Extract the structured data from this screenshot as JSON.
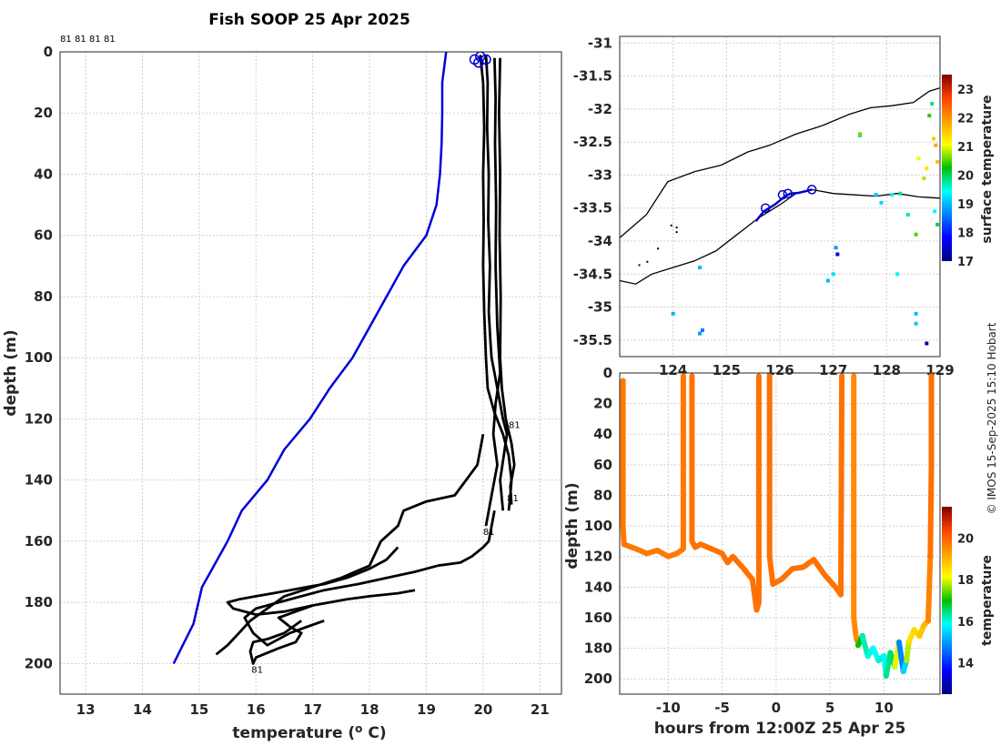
{
  "page": {
    "title": "Fish SOOP 25 Apr 2025",
    "credit": "© IMOS 15-Sep-2025 15:10 Hobart"
  },
  "chart_data": [
    {
      "id": "profile",
      "type": "line",
      "title": "Fish SOOP 25 Apr 2025",
      "xlabel": "temperature (",
      "xlabel_unit_sup": "o",
      "xlabel_unit": " C)",
      "ylabel": "depth (m)",
      "xlim": [
        12.55,
        21.38
      ],
      "ylim": [
        210,
        0
      ],
      "xticks": [
        13,
        14,
        15,
        16,
        17,
        18,
        19,
        20,
        21
      ],
      "yticks": [
        0,
        20,
        40,
        60,
        80,
        100,
        120,
        140,
        160,
        180,
        200
      ],
      "grid": true,
      "top_labels": [
        "81",
        "81",
        "81",
        "81"
      ],
      "point_labels": [
        {
          "text": "81",
          "x": 20.45,
          "y": 123
        },
        {
          "text": "81",
          "x": 20.42,
          "y": 147
        },
        {
          "text": "81",
          "x": 20.0,
          "y": 158
        },
        {
          "text": "81",
          "x": 15.92,
          "y": 203
        }
      ],
      "series": [
        {
          "name": "climatology",
          "color": "#0000dd",
          "x": [
            19.35,
            19.28,
            19.28,
            19.27,
            19.24,
            19.18,
            19.0,
            18.6,
            18.3,
            18.0,
            17.7,
            17.3,
            16.95,
            16.5,
            16.2,
            15.75,
            15.5,
            15.2,
            15.05,
            14.9,
            14.55
          ],
          "y": [
            0,
            10,
            20,
            30,
            40,
            50,
            60,
            70,
            80,
            90,
            100,
            110,
            120,
            130,
            140,
            150,
            160,
            170,
            175,
            187,
            200
          ]
        },
        {
          "name": "profile-upper-1",
          "color": "#000000",
          "x": [
            20.05,
            20.08,
            20.07,
            20.1,
            20.09,
            20.12,
            20.1,
            20.13,
            20.15,
            20.2,
            20.25,
            20.3,
            20.35,
            20.42,
            20.38,
            20.3,
            20.35
          ],
          "y": [
            1,
            10,
            25,
            40,
            55,
            70,
            85,
            95,
            100,
            105,
            110,
            115,
            120,
            125,
            130,
            140,
            150
          ]
        },
        {
          "name": "profile-upper-2",
          "color": "#000000",
          "x": [
            19.95,
            20.0,
            20.02,
            20.0,
            20.01,
            20.0,
            20.02,
            20.05,
            20.08,
            20.2,
            20.35,
            20.45,
            20.5,
            20.48,
            20.45
          ],
          "y": [
            1,
            10,
            25,
            40,
            55,
            70,
            85,
            100,
            110,
            118,
            125,
            132,
            140,
            145,
            150
          ]
        },
        {
          "name": "profile-upper-3",
          "color": "#000000",
          "x": [
            20.2,
            20.22,
            20.21,
            20.23,
            20.22,
            20.25,
            20.3,
            20.22,
            20.18,
            20.25,
            20.15,
            20.05
          ],
          "y": [
            2,
            15,
            30,
            50,
            70,
            90,
            105,
            115,
            125,
            135,
            145,
            155
          ]
        },
        {
          "name": "profile-upper-4",
          "color": "#000000",
          "x": [
            20.3,
            20.28,
            20.3,
            20.29,
            20.31,
            20.3,
            20.33,
            20.4,
            20.5,
            20.55,
            20.48,
            20.5
          ],
          "y": [
            2,
            20,
            40,
            60,
            80,
            100,
            110,
            120,
            128,
            135,
            142,
            148
          ]
        },
        {
          "name": "profile-deep-1",
          "color": "#000000",
          "x": [
            20.0,
            19.95,
            19.9,
            19.7,
            19.5,
            19.0,
            18.6,
            18.5,
            18.2,
            18.0,
            17.5,
            17.0,
            16.5,
            16.2,
            15.9,
            15.7,
            15.5,
            15.3
          ],
          "y": [
            125,
            130,
            135,
            140,
            145,
            147,
            150,
            155,
            160,
            168,
            172,
            175,
            178,
            182,
            186,
            190,
            194,
            197
          ]
        },
        {
          "name": "profile-deep-2",
          "color": "#000000",
          "x": [
            20.2,
            20.1,
            20.0,
            19.8,
            19.6,
            19.2,
            18.8,
            18.3,
            17.8,
            17.2,
            16.8,
            16.4,
            16.0,
            15.8,
            15.95,
            16.2,
            16.6,
            16.9,
            17.2
          ],
          "y": [
            150,
            160,
            162,
            165,
            167,
            168,
            170,
            172,
            174,
            176,
            178,
            180,
            182,
            185,
            190,
            194,
            190,
            188,
            186
          ]
        },
        {
          "name": "profile-deep-3",
          "color": "#000000",
          "x": [
            18.5,
            18.3,
            18.0,
            17.6,
            17.2,
            16.9,
            16.6,
            16.3,
            16.0,
            15.7,
            15.5,
            15.6,
            16.0,
            16.5,
            17.0,
            17.6,
            18.0,
            18.5,
            18.8
          ],
          "y": [
            162,
            166,
            169,
            172,
            174,
            175,
            176,
            177,
            178,
            179,
            180,
            182,
            184,
            183,
            181,
            179,
            178,
            177,
            176
          ]
        },
        {
          "name": "profile-deep-4",
          "color": "#000000",
          "x": [
            16.8,
            16.5,
            16.2,
            15.95,
            15.9,
            15.95,
            16.0,
            16.4,
            16.7,
            16.8,
            16.6,
            16.4,
            16.7,
            17.0
          ],
          "y": [
            186,
            190,
            192,
            193,
            196,
            200,
            198,
            195,
            193,
            190,
            188,
            185,
            183,
            181
          ]
        }
      ],
      "surface_points": [
        {
          "x": 19.85,
          "y": 2.5
        },
        {
          "x": 19.95,
          "y": 1.5
        },
        {
          "x": 20.05,
          "y": 2.5
        },
        {
          "x": 19.92,
          "y": 3.5
        }
      ]
    },
    {
      "id": "map",
      "type": "scatter",
      "xlim": [
        123.0,
        129.0
      ],
      "ylim": [
        -35.75,
        -30.9
      ],
      "xticks": [
        124,
        125,
        126,
        127,
        128,
        129
      ],
      "xtick_labels": [
        "124",
        "125",
        "126",
        "127",
        "128",
        "129"
      ],
      "yticks": [
        -31,
        -31.5,
        -32,
        -32.5,
        -33,
        -33.5,
        -34,
        -34.5,
        -35,
        -35.5
      ],
      "colorbar": {
        "label": "surface temperature",
        "range": [
          17,
          23.5
        ],
        "ticks": [
          17,
          18,
          19,
          20,
          21,
          22,
          23
        ]
      },
      "coast_lines": [
        {
          "x": [
            123.0,
            123.5,
            123.9,
            124.4,
            124.9,
            125.4,
            125.8,
            126.3,
            126.8,
            127.3,
            127.7,
            128.1,
            128.5,
            128.8,
            129.0
          ],
          "y": [
            -33.95,
            -33.6,
            -33.1,
            -32.95,
            -32.85,
            -32.65,
            -32.55,
            -32.38,
            -32.25,
            -32.08,
            -31.98,
            -31.95,
            -31.9,
            -31.73,
            -31.68
          ]
        },
        {
          "x": [
            123.0,
            123.3,
            123.6,
            124.0,
            124.4,
            124.8,
            125.2,
            125.6,
            126.0,
            126.3,
            126.6,
            127.0,
            127.4,
            127.8,
            128.2,
            128.6,
            129.0
          ],
          "y": [
            -34.6,
            -34.65,
            -34.5,
            -34.4,
            -34.3,
            -34.15,
            -33.9,
            -33.65,
            -33.45,
            -33.28,
            -33.22,
            -33.28,
            -33.3,
            -33.32,
            -33.28,
            -33.33,
            -33.35
          ]
        }
      ],
      "track": {
        "x": [
          125.55,
          125.7,
          125.9,
          126.1,
          126.2,
          126.35,
          126.45,
          126.6
        ],
        "y": [
          -33.7,
          -33.55,
          -33.45,
          -33.32,
          -33.28,
          -33.27,
          -33.25,
          -33.22
        ]
      },
      "track_markers": [
        {
          "x": 125.73,
          "y": -33.5
        },
        {
          "x": 126.05,
          "y": -33.3
        },
        {
          "x": 126.15,
          "y": -33.28
        },
        {
          "x": 126.6,
          "y": -33.22
        }
      ],
      "sst_points": [
        {
          "x": 128.85,
          "y": -31.92,
          "v": 19.8
        },
        {
          "x": 128.8,
          "y": -32.1,
          "v": 20.4
        },
        {
          "x": 128.88,
          "y": -32.45,
          "v": 21.5
        },
        {
          "x": 128.92,
          "y": -32.55,
          "v": 21.8
        },
        {
          "x": 128.6,
          "y": -32.75,
          "v": 21.0
        },
        {
          "x": 128.75,
          "y": -32.9,
          "v": 21.3
        },
        {
          "x": 128.95,
          "y": -32.8,
          "v": 21.6
        },
        {
          "x": 128.25,
          "y": -33.28,
          "v": 19.8
        },
        {
          "x": 128.1,
          "y": -33.3,
          "v": 19.5
        },
        {
          "x": 128.4,
          "y": -33.6,
          "v": 19.7
        },
        {
          "x": 128.55,
          "y": -33.9,
          "v": 20.5
        },
        {
          "x": 128.95,
          "y": -33.75,
          "v": 20.0
        },
        {
          "x": 128.9,
          "y": -33.55,
          "v": 19.4
        },
        {
          "x": 127.5,
          "y": -32.4,
          "v": 19.8
        },
        {
          "x": 127.5,
          "y": -32.38,
          "v": 20.6
        },
        {
          "x": 127.05,
          "y": -34.1,
          "v": 18.8
        },
        {
          "x": 127.08,
          "y": -34.2,
          "v": 17.6
        },
        {
          "x": 126.9,
          "y": -34.6,
          "v": 19.0
        },
        {
          "x": 127.0,
          "y": -34.5,
          "v": 19.2
        },
        {
          "x": 124.5,
          "y": -34.4,
          "v": 19.0
        },
        {
          "x": 124.0,
          "y": -35.1,
          "v": 18.9
        },
        {
          "x": 124.5,
          "y": -35.4,
          "v": 18.8
        },
        {
          "x": 124.55,
          "y": -35.35,
          "v": 18.6
        },
        {
          "x": 128.2,
          "y": -34.5,
          "v": 19.5
        },
        {
          "x": 128.55,
          "y": -35.1,
          "v": 19.0
        },
        {
          "x": 128.55,
          "y": -35.25,
          "v": 19.1
        },
        {
          "x": 128.75,
          "y": -35.55,
          "v": 17.2
        },
        {
          "x": 127.8,
          "y": -33.3,
          "v": 19.0
        },
        {
          "x": 127.9,
          "y": -33.42,
          "v": 19.2
        },
        {
          "x": 128.7,
          "y": -33.05,
          "v": 20.8
        }
      ],
      "coast_fragments": [
        {
          "x": 123.95,
          "y": -33.75
        },
        {
          "x": 124.05,
          "y": -33.85
        },
        {
          "x": 123.7,
          "y": -34.1
        },
        {
          "x": 123.5,
          "y": -34.3
        },
        {
          "x": 123.35,
          "y": -34.35
        },
        {
          "x": 124.05,
          "y": -33.78
        }
      ]
    },
    {
      "id": "timeseries",
      "type": "scatter",
      "xlabel": "hours from 12:00Z 25 Apr 25",
      "ylabel": "depth (m)",
      "xlim": [
        -14.5,
        15.2
      ],
      "ylim": [
        210,
        0
      ],
      "xticks": [
        -10,
        -5,
        0,
        5,
        10
      ],
      "yticks": [
        0,
        20,
        40,
        60,
        80,
        100,
        120,
        140,
        160,
        180,
        200
      ],
      "colorbar": {
        "label": "temperature",
        "range": [
          12.5,
          21.5
        ],
        "ticks": [
          14,
          16,
          18,
          20
        ]
      },
      "segments": [
        {
          "x": [
            -14.2,
            -14.2,
            -14.1,
            -13.0,
            -12.0,
            -11.0,
            -10.0,
            -9.2,
            -8.6,
            -8.6
          ],
          "y": [
            5,
            100,
            112,
            115,
            118,
            116,
            120,
            118,
            115,
            2
          ],
          "v": 19.7
        },
        {
          "x": [
            -7.8,
            -7.8,
            -7.5,
            -7.0,
            -6.0,
            -5.0,
            -4.5,
            -4.0,
            -3.0,
            -2.2,
            -1.8,
            -1.6,
            -1.6
          ],
          "y": [
            2,
            110,
            114,
            112,
            115,
            118,
            124,
            120,
            128,
            135,
            155,
            150,
            2
          ],
          "v": 19.8
        },
        {
          "x": [
            -0.6,
            -0.6,
            -0.3,
            0.5,
            1.5,
            2.5,
            3.5,
            4.5,
            5.5,
            6.0,
            6.1
          ],
          "y": [
            2,
            120,
            138,
            135,
            128,
            127,
            122,
            132,
            140,
            145,
            2
          ],
          "v": 19.8
        },
        {
          "x": [
            7.2,
            7.2,
            7.4,
            7.5
          ],
          "y": [
            2,
            160,
            172,
            175
          ],
          "v": 19.5
        }
      ],
      "deep_points": [
        {
          "x": 7.6,
          "y": 178,
          "v": 18.2
        },
        {
          "x": 8.0,
          "y": 172,
          "v": 17.0
        },
        {
          "x": 8.5,
          "y": 185,
          "v": 16.2
        },
        {
          "x": 9.0,
          "y": 180,
          "v": 16.0
        },
        {
          "x": 9.5,
          "y": 188,
          "v": 15.9
        },
        {
          "x": 10.0,
          "y": 185,
          "v": 16.1
        },
        {
          "x": 10.2,
          "y": 198,
          "v": 15.8
        },
        {
          "x": 10.6,
          "y": 183,
          "v": 16.4
        },
        {
          "x": 11.0,
          "y": 192,
          "v": 16.5
        },
        {
          "x": 11.4,
          "y": 176,
          "v": 18.0
        },
        {
          "x": 11.8,
          "y": 195,
          "v": 14.8
        },
        {
          "x": 12.1,
          "y": 188,
          "v": 15.5
        },
        {
          "x": 12.3,
          "y": 176,
          "v": 17.8
        },
        {
          "x": 12.8,
          "y": 168,
          "v": 18.5
        },
        {
          "x": 13.3,
          "y": 172,
          "v": 18.6
        },
        {
          "x": 13.7,
          "y": 165,
          "v": 18.8
        },
        {
          "x": 14.1,
          "y": 162,
          "v": 19.0
        },
        {
          "x": 14.3,
          "y": 120,
          "v": 19.6
        },
        {
          "x": 14.4,
          "y": 60,
          "v": 19.8
        },
        {
          "x": 14.4,
          "y": 2,
          "v": 19.8
        }
      ]
    }
  ]
}
